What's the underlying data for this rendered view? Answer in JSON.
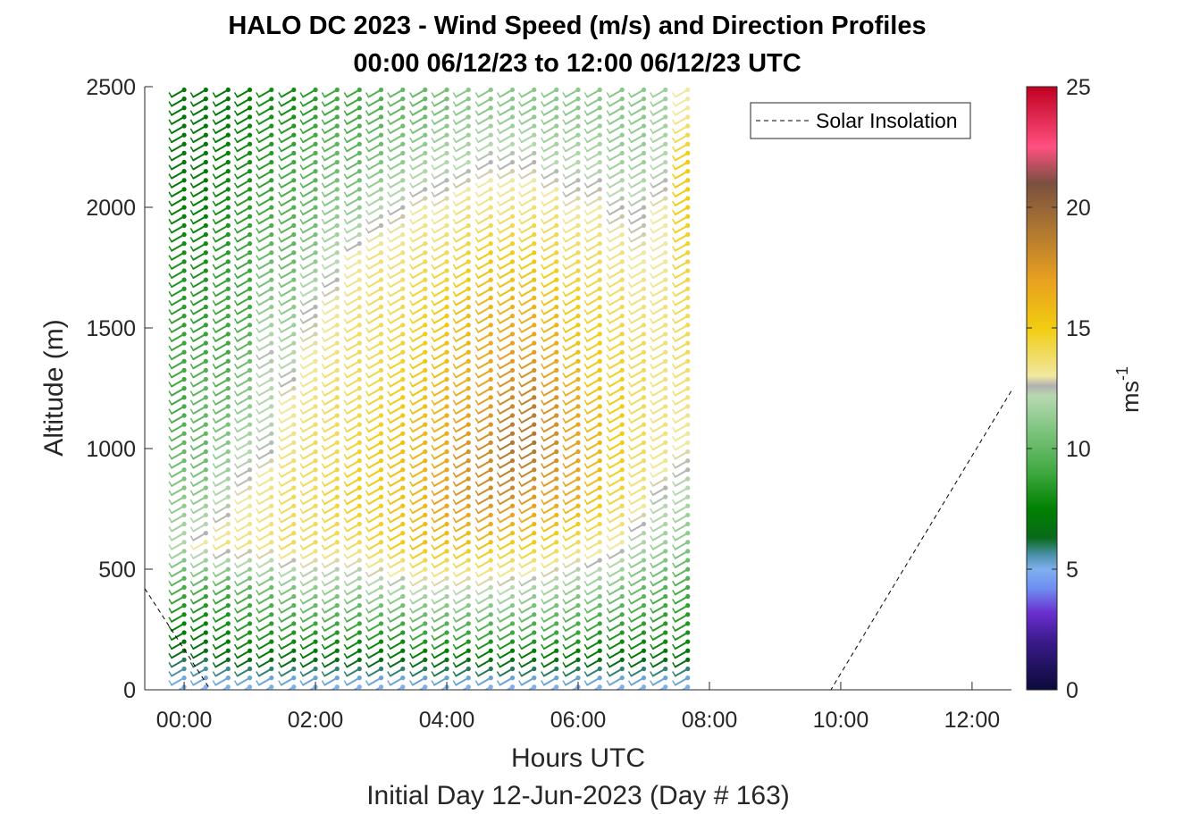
{
  "chart_data": {
    "type": "wind-barb-profile",
    "title_line1": "HALO DC 2023 - Wind Speed (m/s) and Direction Profiles",
    "title_line2": "00:00 06/12/23 to 12:00 06/12/23  UTC",
    "xlabel": "Hours UTC",
    "xlabel2": "Initial Day 12-Jun-2023 (Day # 163)",
    "ylabel": "Altitude (m)",
    "x_ticks": [
      "00:00",
      "02:00",
      "04:00",
      "06:00",
      "08:00",
      "10:00",
      "12:00"
    ],
    "y_ticks": [
      "0",
      "500",
      "1000",
      "1500",
      "2000",
      "2500"
    ],
    "x_range_hours": [
      -0.6,
      12.6
    ],
    "y_range_m": [
      0,
      2500
    ],
    "colorbar": {
      "label": "ms",
      "label_sup": "-1",
      "ticks": [
        "0",
        "5",
        "10",
        "15",
        "20",
        "25"
      ],
      "range": [
        0,
        25
      ],
      "colors": [
        {
          "v": 0,
          "c": "#0b0b3b"
        },
        {
          "v": 2,
          "c": "#3a1a8a"
        },
        {
          "v": 3.2,
          "c": "#6a2fd0"
        },
        {
          "v": 4.2,
          "c": "#6f8ef0"
        },
        {
          "v": 5,
          "c": "#7fb0ee"
        },
        {
          "v": 5.6,
          "c": "#4a90a8"
        },
        {
          "v": 6.3,
          "c": "#0a6a1a"
        },
        {
          "v": 7.5,
          "c": "#008000"
        },
        {
          "v": 9,
          "c": "#3fa83f"
        },
        {
          "v": 11,
          "c": "#88c888"
        },
        {
          "v": 12.2,
          "c": "#b8d8b0"
        },
        {
          "v": 12.6,
          "c": "#b0b0b0"
        },
        {
          "v": 13,
          "c": "#f0e8a0"
        },
        {
          "v": 15,
          "c": "#f2cc10"
        },
        {
          "v": 17,
          "c": "#e8a020"
        },
        {
          "v": 19,
          "c": "#b07830"
        },
        {
          "v": 21,
          "c": "#7a5040"
        },
        {
          "v": 22.5,
          "c": "#ff5080"
        },
        {
          "v": 25,
          "c": "#c00020"
        }
      ]
    },
    "legend": {
      "label": "Solar Insolation",
      "position": "top-right"
    },
    "profile_times_hours": [
      0.0,
      0.33,
      0.67,
      1.0,
      1.33,
      1.67,
      2.0,
      2.33,
      2.67,
      3.0,
      3.33,
      3.67,
      4.0,
      4.33,
      4.67,
      5.0,
      5.33,
      5.67,
      6.0,
      6.33,
      6.67,
      7.0,
      7.33,
      7.67
    ],
    "altitudes_m": [
      25,
      200,
      400,
      600,
      800,
      1000,
      1200,
      1400,
      1600,
      1800,
      2000,
      2200,
      2400
    ],
    "wind_speed_ms": [
      [
        5,
        7,
        9,
        12,
        11,
        10,
        9,
        9,
        8.5,
        8,
        7.5,
        7,
        7
      ],
      [
        5,
        7,
        9,
        13,
        11,
        10,
        10,
        9,
        8.5,
        8,
        7.5,
        7,
        7
      ],
      [
        5,
        7.5,
        9,
        13.5,
        12,
        11,
        10,
        9,
        9,
        8.5,
        8,
        7.5,
        7
      ],
      [
        5,
        8,
        9.5,
        13.5,
        13,
        12,
        11,
        10,
        9,
        9,
        8.5,
        8,
        7.5
      ],
      [
        5,
        8,
        10,
        13.5,
        13.5,
        12.5,
        12,
        12.5,
        11,
        10,
        9,
        8.5,
        8
      ],
      [
        5,
        8,
        10.5,
        14,
        14,
        13.5,
        13,
        12,
        11,
        10,
        9.5,
        9,
        8
      ],
      [
        5,
        8,
        11,
        14,
        14,
        14,
        13.5,
        13,
        12.5,
        11,
        10,
        9.5,
        8.5
      ],
      [
        5,
        8,
        11,
        14,
        14.5,
        14,
        14,
        13.5,
        13,
        12,
        11,
        10,
        9
      ],
      [
        5,
        8,
        11,
        14,
        15,
        14.5,
        14,
        14,
        13.5,
        13,
        11,
        10,
        9
      ],
      [
        5,
        8,
        11.5,
        14.5,
        15,
        15,
        14.5,
        14,
        14,
        13.5,
        12,
        10.5,
        9.5
      ],
      [
        5,
        8,
        11.5,
        15,
        15.5,
        15.5,
        15,
        14.5,
        14,
        13.5,
        12.5,
        11,
        10
      ],
      [
        5,
        8.5,
        12,
        15.5,
        16,
        16,
        15.5,
        15,
        14.5,
        14,
        13,
        11.5,
        10
      ],
      [
        5,
        8.5,
        12,
        15.5,
        17,
        16.5,
        16,
        15.5,
        15,
        14,
        13,
        12,
        10.5
      ],
      [
        5,
        8.5,
        12,
        15.5,
        17.5,
        17.5,
        16.5,
        16,
        15.5,
        14.5,
        13.5,
        12,
        11
      ],
      [
        5,
        8.5,
        12,
        15.5,
        18,
        18,
        17,
        16.5,
        16,
        15,
        13.5,
        12.5,
        11
      ],
      [
        5,
        8.5,
        12,
        15,
        18,
        19,
        18,
        17,
        16,
        15,
        13.5,
        12.5,
        11
      ],
      [
        5,
        8.5,
        11.5,
        15,
        17.5,
        19,
        18.5,
        17,
        16,
        15,
        13.5,
        12.5,
        11
      ],
      [
        5,
        8.5,
        11.5,
        14.5,
        17,
        18,
        17.5,
        16.5,
        15.5,
        14.5,
        13.5,
        12,
        11
      ],
      [
        5,
        8.5,
        11,
        14,
        16.5,
        17,
        16.5,
        15.5,
        15,
        14,
        13,
        12,
        11
      ],
      [
        5,
        8,
        11,
        13.5,
        15.5,
        16,
        15.5,
        15,
        14.5,
        14,
        13,
        12,
        11
      ],
      [
        5,
        8,
        10.5,
        13,
        14.5,
        15,
        15,
        14.5,
        14,
        13.5,
        12.5,
        11.5,
        11
      ],
      [
        5,
        8,
        10,
        12,
        13.5,
        14,
        14,
        14,
        13.5,
        13,
        12.5,
        11.5,
        11
      ],
      [
        5,
        8,
        9.5,
        11.5,
        12.5,
        13.5,
        13.5,
        13.5,
        13.5,
        13,
        13,
        12,
        11.5
      ],
      [
        5,
        8,
        9,
        11,
        12,
        13,
        13.5,
        14,
        14,
        14.5,
        15,
        15,
        13
      ]
    ],
    "wind_direction_from_deg": 225,
    "solar_insolation_curve": [
      {
        "t": -0.6,
        "v": 420
      },
      {
        "t": 0.4,
        "v": 0
      },
      {
        "t": 9.85,
        "v": 0
      },
      {
        "t": 12.6,
        "v": 1240
      }
    ]
  }
}
